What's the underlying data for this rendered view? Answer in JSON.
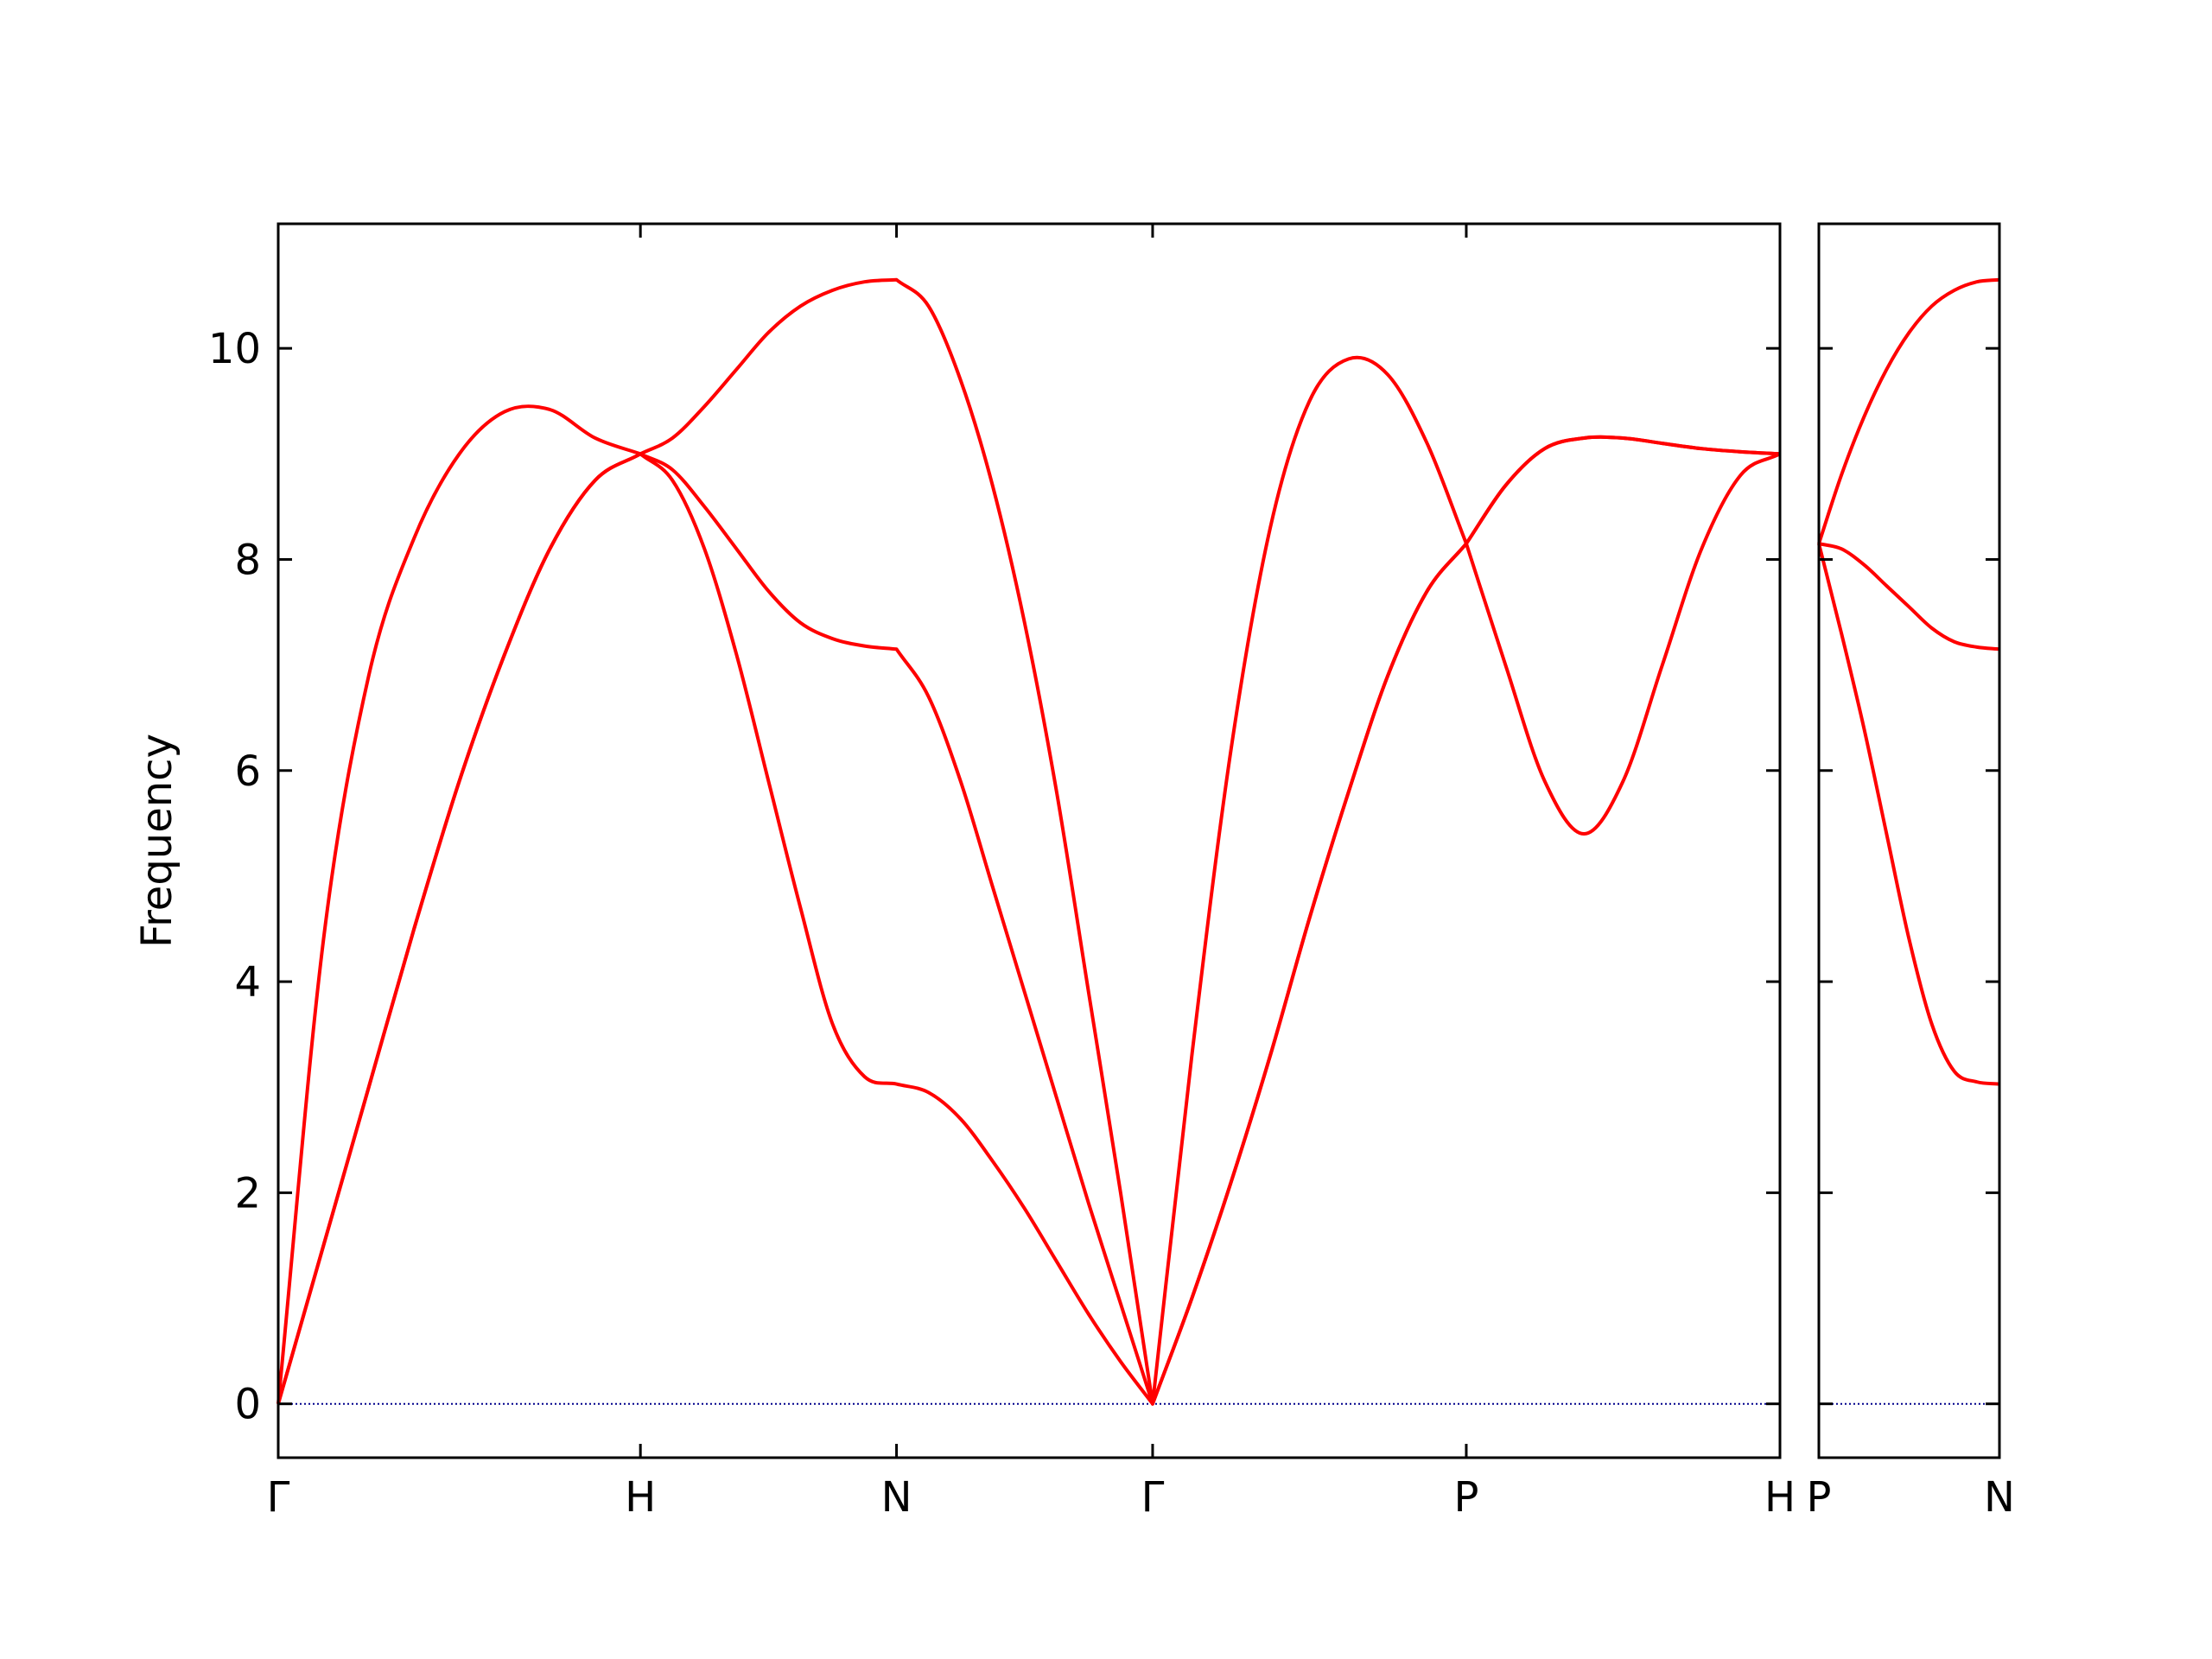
{
  "chart_data": [
    {
      "type": "line",
      "ylabel": "Frequency",
      "x": [
        0,
        0.125,
        0.25,
        0.375,
        0.5,
        0.625,
        0.75,
        0.875,
        1,
        1.0884,
        1.1768,
        1.2652,
        1.3536,
        1.4419,
        1.5303,
        1.6187,
        1.7071,
        1.7955,
        1.8839,
        1.9723,
        2.0607,
        2.149,
        2.2374,
        2.3258,
        2.4142,
        2.5225,
        2.6307,
        2.739,
        2.8472,
        2.9555,
        3.0637,
        3.172,
        3.2802,
        3.3885,
        3.4967,
        3.605,
        3.7132,
        3.8215,
        3.9298,
        4.038,
        4.1463
      ],
      "series": [
        {
          "color": "#ff0000",
          "values": [
            0,
            1.5,
            3.0,
            4.5,
            5.9,
            7.1,
            8.1,
            8.75,
            9.0,
            8.75,
            8.1,
            7.1,
            5.9,
            4.7,
            3.6,
            3.1,
            3.03,
            2.95,
            2.7,
            2.3,
            1.85,
            1.35,
            0.85,
            0.4,
            0,
            1.0,
            2.1,
            3.3,
            4.6,
            5.8,
            6.9,
            7.7,
            8.15,
            8.7,
            9.05,
            9.15,
            9.15,
            9.1,
            9.05,
            9.02,
            9.0
          ]
        },
        {
          "color": "#ff0000",
          "values": [
            0,
            1.5,
            3.0,
            4.5,
            5.9,
            7.1,
            8.1,
            8.75,
            9.0,
            8.85,
            8.5,
            8.1,
            7.7,
            7.4,
            7.25,
            7.18,
            7.15,
            6.7,
            5.9,
            4.9,
            3.9,
            2.9,
            1.9,
            0.95,
            0,
            1.0,
            2.1,
            3.3,
            4.6,
            5.8,
            6.9,
            7.7,
            8.15,
            8.7,
            9.05,
            9.15,
            9.15,
            9.1,
            9.05,
            9.02,
            9.0
          ]
        },
        {
          "color": "#ff0000",
          "values": [
            0,
            4.4,
            6.9,
            8.2,
            9.0,
            9.4,
            9.42,
            9.15,
            9.0,
            9.15,
            9.45,
            9.8,
            10.15,
            10.4,
            10.55,
            10.63,
            10.65,
            10.4,
            9.7,
            8.7,
            7.4,
            5.8,
            3.9,
            2.0,
            0,
            3.3,
            6.2,
            8.3,
            9.5,
            9.9,
            9.75,
            9.1,
            8.15,
            7.0,
            5.9,
            5.4,
            5.9,
            7.0,
            8.1,
            8.8,
            9.0
          ]
        }
      ],
      "xlim": [
        0,
        4.1463
      ],
      "xticks": [
        {
          "value": 0,
          "label": "Γ"
        },
        {
          "value": 1,
          "label": "H"
        },
        {
          "value": 1.7071,
          "label": "N"
        },
        {
          "value": 2.4142,
          "label": "Γ"
        },
        {
          "value": 3.2802,
          "label": "P"
        },
        {
          "value": 4.1463,
          "label": "H"
        }
      ],
      "ylim": [
        -0.51,
        11.18
      ],
      "yticks": [
        0,
        2,
        4,
        6,
        8,
        10
      ],
      "ytick_labels": true,
      "hline": {
        "value": 0,
        "color": "#00008b",
        "style": "dotted"
      }
    },
    {
      "type": "line",
      "x": [
        4.1463,
        4.2088,
        4.2713,
        4.3338,
        4.3963,
        4.4588,
        4.5213,
        4.5838,
        4.6463
      ],
      "series": [
        {
          "color": "#ff0000",
          "values": [
            8.15,
            7.3,
            6.4,
            5.4,
            4.4,
            3.6,
            3.15,
            3.05,
            3.03
          ]
        },
        {
          "color": "#ff0000",
          "values": [
            8.15,
            8.1,
            7.95,
            7.75,
            7.55,
            7.35,
            7.22,
            7.17,
            7.15
          ]
        },
        {
          "color": "#ff0000",
          "values": [
            8.15,
            8.8,
            9.35,
            9.8,
            10.15,
            10.4,
            10.55,
            10.63,
            10.65
          ]
        }
      ],
      "xlim": [
        4.1463,
        4.6463
      ],
      "xticks": [
        {
          "value": 4.1463,
          "label": "P"
        },
        {
          "value": 4.6463,
          "label": "N"
        }
      ],
      "ylim": [
        -0.51,
        11.18
      ],
      "yticks": [
        0,
        2,
        4,
        6,
        8,
        10
      ],
      "ytick_labels": false,
      "hline": {
        "value": 0,
        "color": "#00008b",
        "style": "dotted"
      }
    }
  ]
}
